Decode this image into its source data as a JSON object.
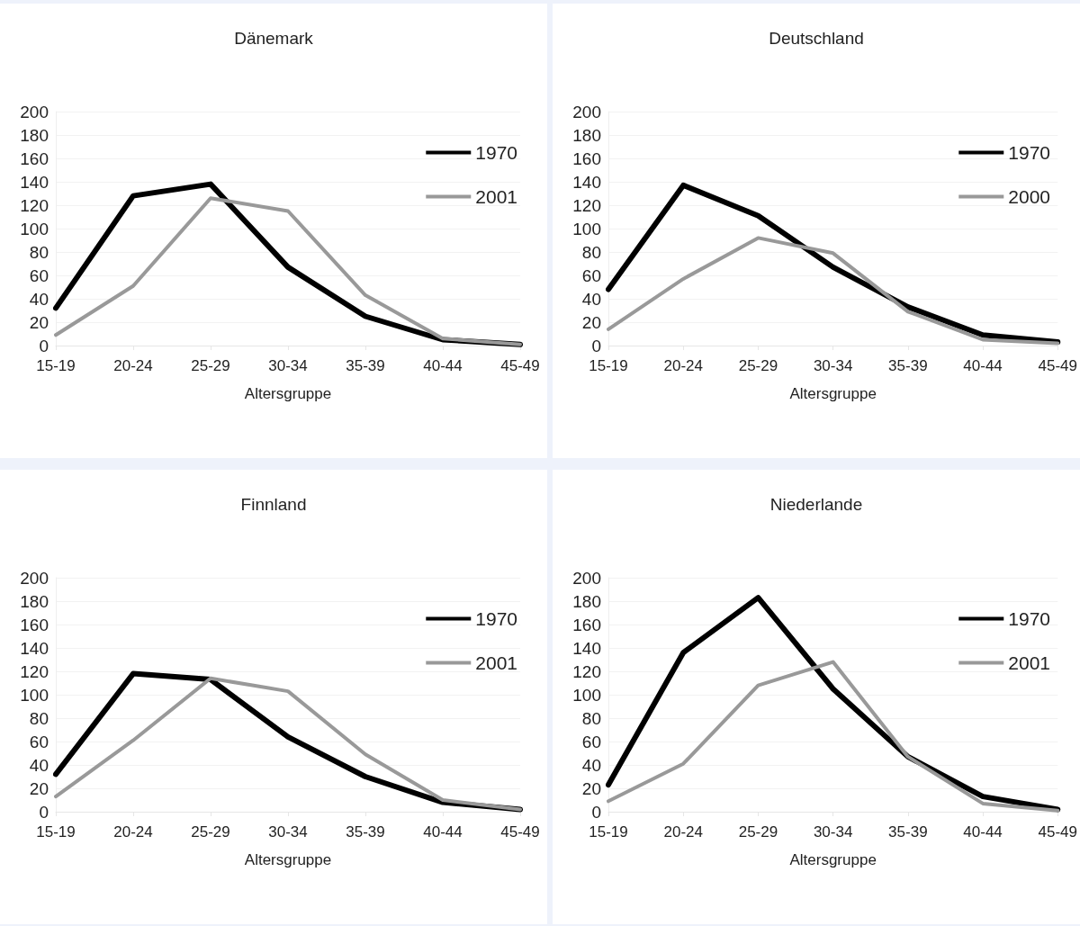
{
  "chart_data": [
    {
      "type": "line",
      "title": "Dänemark",
      "xlabel": "Altersgruppe",
      "categories": [
        "15-19",
        "20-24",
        "25-29",
        "30-34",
        "35-39",
        "40-44",
        "45-49"
      ],
      "series": [
        {
          "name": "1970",
          "color": "#000000",
          "values": [
            32,
            128,
            138,
            67,
            25,
            5,
            1
          ]
        },
        {
          "name": "2001",
          "color": "#999999",
          "values": [
            9,
            51,
            126,
            115,
            43,
            6,
            1
          ]
        }
      ],
      "ylim": [
        0,
        200
      ],
      "yticks": [
        0,
        20,
        40,
        60,
        80,
        100,
        120,
        140,
        160,
        180,
        200
      ],
      "grid": "y",
      "legend": "top right",
      "marker": "none",
      "line_style": "solid"
    },
    {
      "type": "line",
      "title": "Deutschland",
      "xlabel": "Altersgruppe",
      "categories": [
        "15-19",
        "20-24",
        "25-29",
        "30-34",
        "35-39",
        "40-44",
        "45-49"
      ],
      "series": [
        {
          "name": "1970",
          "color": "#000000",
          "values": [
            48,
            137,
            111,
            67,
            33,
            9,
            3
          ]
        },
        {
          "name": "2000",
          "color": "#999999",
          "values": [
            14,
            57,
            92,
            79,
            29,
            5,
            2
          ]
        }
      ],
      "ylim": [
        0,
        200
      ],
      "yticks": [
        0,
        20,
        40,
        60,
        80,
        100,
        120,
        140,
        160,
        180,
        200
      ],
      "grid": "y",
      "legend": "top right",
      "marker": "none",
      "line_style": "solid"
    },
    {
      "type": "line",
      "title": "Finnland",
      "xlabel": "Altersgruppe",
      "categories": [
        "15-19",
        "20-24",
        "25-29",
        "30-34",
        "35-39",
        "40-44",
        "45-49"
      ],
      "series": [
        {
          "name": "1970",
          "color": "#000000",
          "values": [
            32,
            118,
            113,
            64,
            30,
            8,
            2
          ]
        },
        {
          "name": "2001",
          "color": "#999999",
          "values": [
            13,
            61,
            114,
            103,
            49,
            10,
            2
          ]
        }
      ],
      "ylim": [
        0,
        200
      ],
      "yticks": [
        0,
        20,
        40,
        60,
        80,
        100,
        120,
        140,
        160,
        180,
        200
      ],
      "grid": "y",
      "legend": "top right",
      "marker": "none",
      "line_style": "solid"
    },
    {
      "type": "line",
      "title": "Niederlande",
      "xlabel": "Altersgruppe",
      "categories": [
        "15-19",
        "20-24",
        "25-29",
        "30-34",
        "35-39",
        "40-44",
        "45-49"
      ],
      "series": [
        {
          "name": "1970",
          "color": "#000000",
          "values": [
            23,
            136,
            183,
            105,
            47,
            13,
            2
          ]
        },
        {
          "name": "2001",
          "color": "#999999",
          "values": [
            9,
            41,
            108,
            128,
            47,
            7,
            1
          ]
        }
      ],
      "ylim": [
        0,
        200
      ],
      "yticks": [
        0,
        20,
        40,
        60,
        80,
        100,
        120,
        140,
        160,
        180,
        200
      ],
      "grid": "y",
      "legend": "top right",
      "marker": "none",
      "line_style": "solid"
    }
  ]
}
